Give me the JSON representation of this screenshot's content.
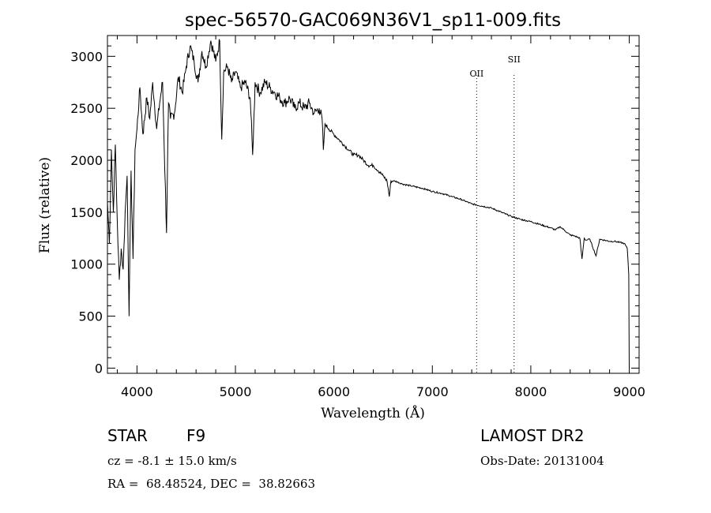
{
  "chart_data": {
    "type": "line",
    "title": "spec-56570-GAC069N36V1_sp11-009.fits",
    "xlabel": "Wavelength (Å)",
    "ylabel": "Flux (relative)",
    "xlim": [
      3700,
      9100
    ],
    "ylim": [
      -50,
      3200
    ],
    "xticks": [
      4000,
      5000,
      6000,
      7000,
      8000,
      9000
    ],
    "yticks": [
      0,
      500,
      1000,
      1500,
      2000,
      2500,
      3000
    ],
    "grid": false,
    "series": [
      {
        "x": [
          3700,
          3720,
          3740,
          3760,
          3780,
          3800,
          3820,
          3840,
          3860,
          3880,
          3900,
          3920,
          3940,
          3960,
          3980,
          4000,
          4030,
          4060,
          4100,
          4130,
          4160,
          4200,
          4230,
          4260,
          4300,
          4320,
          4340,
          4380,
          4420,
          4460,
          4500,
          4540,
          4580,
          4620,
          4660,
          4700,
          4750,
          4800,
          4840,
          4861,
          4880,
          4920,
          4960,
          5000,
          5050,
          5100,
          5150,
          5175,
          5200,
          5250,
          5300,
          5350,
          5400,
          5450,
          5500,
          5550,
          5600,
          5650,
          5700,
          5750,
          5800,
          5850,
          5880,
          5893,
          5910,
          5950,
          6000,
          6050,
          6100,
          6150,
          6200,
          6250,
          6300,
          6350,
          6400,
          6450,
          6500,
          6540,
          6563,
          6580,
          6620,
          6700,
          6800,
          6900,
          7000,
          7100,
          7200,
          7300,
          7400,
          7500,
          7600,
          7700,
          7800,
          7900,
          8000,
          8100,
          8200,
          8250,
          8300,
          8350,
          8400,
          8450,
          8498,
          8520,
          8542,
          8560,
          8600,
          8662,
          8700,
          8750,
          8800,
          8850,
          8900,
          8950,
          8980,
          8995,
          9000
        ],
        "y": [
          1600,
          1200,
          2100,
          1500,
          2150,
          1400,
          850,
          1150,
          950,
          1500,
          1850,
          500,
          1900,
          1050,
          2100,
          2300,
          2700,
          2250,
          2600,
          2400,
          2750,
          2300,
          2550,
          2750,
          1300,
          2550,
          2400,
          2450,
          2800,
          2650,
          2900,
          3100,
          2950,
          2750,
          3050,
          2900,
          3150,
          2950,
          3150,
          2200,
          2850,
          2900,
          2750,
          2850,
          2700,
          2750,
          2600,
          2050,
          2750,
          2650,
          2750,
          2700,
          2650,
          2600,
          2550,
          2600,
          2500,
          2550,
          2500,
          2550,
          2450,
          2500,
          2400,
          2100,
          2350,
          2300,
          2250,
          2200,
          2150,
          2100,
          2050,
          2050,
          2000,
          1950,
          1950,
          1900,
          1850,
          1800,
          1650,
          1800,
          1800,
          1770,
          1750,
          1730,
          1700,
          1680,
          1650,
          1620,
          1580,
          1560,
          1540,
          1500,
          1460,
          1430,
          1410,
          1380,
          1350,
          1330,
          1360,
          1320,
          1280,
          1270,
          1250,
          1050,
          1250,
          1230,
          1240,
          1080,
          1240,
          1230,
          1220,
          1220,
          1210,
          1200,
          1150,
          900,
          0
        ]
      }
    ],
    "annotations": [
      {
        "label": "OII",
        "x": 7450
      },
      {
        "label": "SII",
        "x": 7830
      }
    ]
  },
  "info": {
    "object_class": "STAR",
    "subclass": "F9",
    "survey": "LAMOST DR2",
    "cz": "cz = -8.1 ± 15.0 km/s",
    "obs_date": "Obs-Date: 20131004",
    "coords": "RA =  68.48524, DEC =  38.82663"
  }
}
